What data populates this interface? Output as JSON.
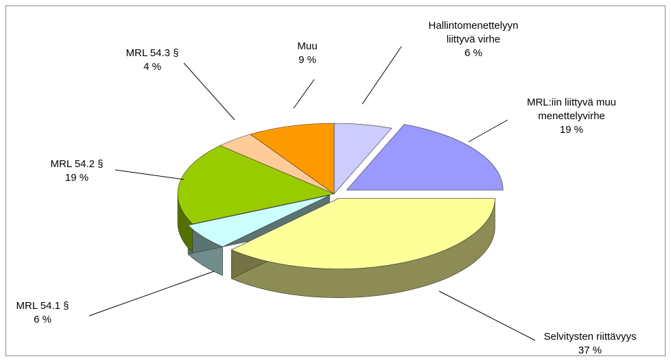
{
  "chart_data": {
    "type": "pie",
    "categories": [
      "Hallintomenettelyyn liittyvä virhe",
      "MRL:iin liittyvä muu menettelyvirhe",
      "Selvitysten riittävyys",
      "MRL 54.1 §",
      "MRL 54.2 §",
      "MRL 54.3 §",
      "Muu"
    ],
    "values": [
      6,
      19,
      37,
      6,
      19,
      4,
      9
    ],
    "value_labels": [
      "6 %",
      "19 %",
      "37 %",
      "6 %",
      "19 %",
      "4 %",
      "9 %"
    ],
    "colors": [
      "#ccccff",
      "#9999ff",
      "#ffff99",
      "#ccffff",
      "#99cc00",
      "#ffcc99",
      "#ff9900"
    ]
  }
}
